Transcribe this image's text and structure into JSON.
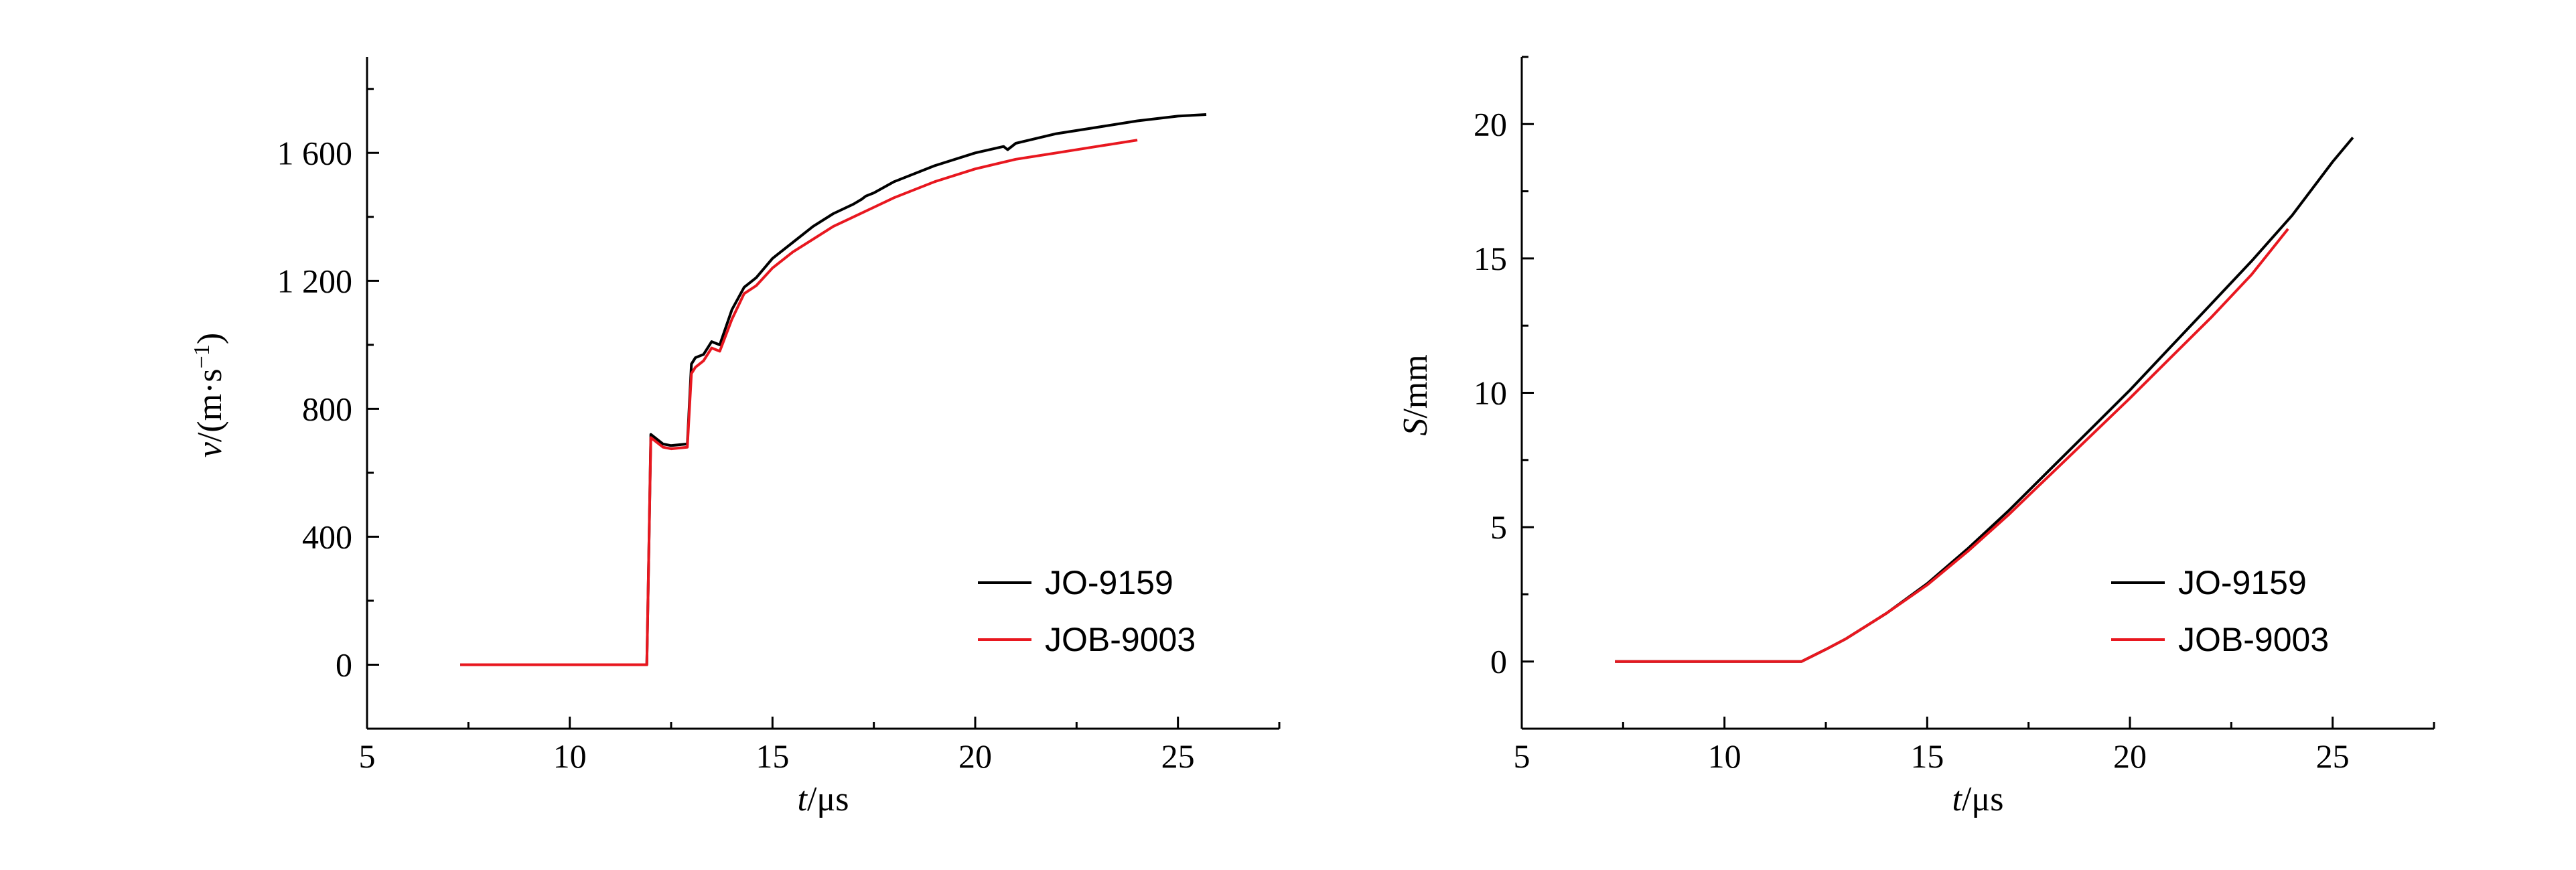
{
  "chart_data": [
    {
      "type": "line",
      "xlabel": {
        "var": "t",
        "unit": "/μs"
      },
      "ylabel": {
        "var": "v",
        "unit": "/(m·s",
        "sup": "−1",
        "close": ")"
      },
      "xlim": [
        5,
        27.5
      ],
      "ylim": [
        -200,
        1900
      ],
      "x_ticks": [
        5,
        10,
        15,
        20,
        25
      ],
      "x_tick_labels": [
        "5",
        "10",
        "15",
        "20",
        "25"
      ],
      "y_ticks": [
        0,
        400,
        800,
        1200,
        1600
      ],
      "y_tick_labels": [
        "0",
        "400",
        "800",
        "1 200",
        "1 600"
      ],
      "grid": false,
      "legend_position": "bottom-right",
      "series": [
        {
          "name": "JO-9159",
          "color": "#000000",
          "x": [
            7.3,
            11.9,
            11.95,
            12.0,
            12.3,
            12.5,
            12.9,
            13.0,
            13.1,
            13.3,
            13.5,
            13.7,
            14.0,
            14.3,
            14.6,
            15.0,
            15.5,
            16.0,
            16.5,
            17.0,
            17.2,
            17.3,
            17.5,
            18.0,
            19.0,
            20.0,
            20.7,
            20.8,
            21.0,
            22.0,
            23.0,
            24.0,
            25.0,
            25.7
          ],
          "y": [
            0,
            0,
            350,
            720,
            690,
            685,
            690,
            940,
            960,
            970,
            1010,
            1000,
            1110,
            1180,
            1210,
            1270,
            1320,
            1370,
            1410,
            1440,
            1455,
            1465,
            1475,
            1510,
            1560,
            1600,
            1620,
            1610,
            1630,
            1660,
            1680,
            1700,
            1715,
            1720
          ]
        },
        {
          "name": "JOB-9003",
          "color": "#e8171f",
          "x": [
            7.3,
            11.9,
            11.95,
            12.0,
            12.3,
            12.5,
            12.9,
            13.0,
            13.1,
            13.3,
            13.5,
            13.7,
            14.0,
            14.3,
            14.6,
            15.0,
            15.5,
            16.0,
            16.5,
            17.0,
            17.5,
            18.0,
            19.0,
            20.0,
            21.0,
            22.0,
            23.0,
            24.0
          ],
          "y": [
            0,
            0,
            350,
            710,
            680,
            675,
            680,
            910,
            930,
            950,
            990,
            980,
            1080,
            1160,
            1185,
            1240,
            1290,
            1330,
            1370,
            1400,
            1430,
            1460,
            1510,
            1550,
            1580,
            1600,
            1620,
            1640
          ]
        }
      ]
    },
    {
      "type": "line",
      "xlabel": {
        "var": "t",
        "unit": "/μs"
      },
      "ylabel": {
        "var": "S",
        "unit": "/mm"
      },
      "xlim": [
        5,
        27.5
      ],
      "ylim": [
        -2.5,
        22.5
      ],
      "x_ticks": [
        5,
        10,
        15,
        20,
        25
      ],
      "x_tick_labels": [
        "5",
        "10",
        "15",
        "20",
        "25"
      ],
      "y_ticks": [
        0,
        5,
        10,
        15,
        20
      ],
      "y_tick_labels": [
        "0",
        "5",
        "10",
        "15",
        "20"
      ],
      "grid": false,
      "legend_position": "bottom-right",
      "series": [
        {
          "name": "JO-9159",
          "color": "#000000",
          "x": [
            7.3,
            11.9,
            12.5,
            13.0,
            14.0,
            15.0,
            16.0,
            17.0,
            18.0,
            19.0,
            20.0,
            21.0,
            22.0,
            23.0,
            24.0,
            25.0,
            25.5
          ],
          "y": [
            0,
            0,
            0.45,
            0.85,
            1.8,
            2.9,
            4.2,
            5.6,
            7.1,
            8.6,
            10.1,
            11.7,
            13.3,
            14.9,
            16.6,
            18.6,
            19.5
          ]
        },
        {
          "name": "JOB-9003",
          "color": "#e8171f",
          "x": [
            7.3,
            11.9,
            12.5,
            13.0,
            14.0,
            15.0,
            16.0,
            17.0,
            18.0,
            19.0,
            20.0,
            21.0,
            22.0,
            23.0,
            23.9
          ],
          "y": [
            0,
            0,
            0.45,
            0.85,
            1.8,
            2.85,
            4.1,
            5.45,
            6.9,
            8.35,
            9.8,
            11.3,
            12.8,
            14.4,
            16.1
          ]
        }
      ]
    }
  ]
}
